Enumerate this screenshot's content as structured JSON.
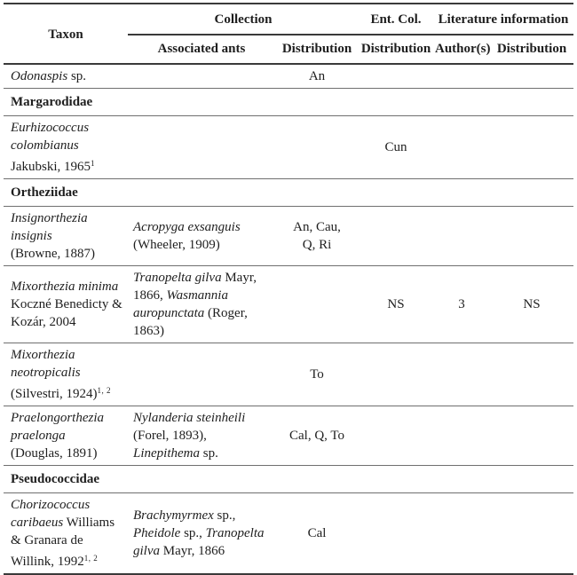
{
  "colors": {
    "background": "#ffffff",
    "text": "#1e1e1e",
    "heavy_rule": "#3a3a3a",
    "light_rule": "#6f6f6f"
  },
  "table": {
    "header": {
      "taxon": "Taxon",
      "collection": "Collection",
      "ent_col": "Ent. Col.",
      "literature": "Literature information",
      "associated_ants": "Associated ants",
      "dist_collection": "Distribution",
      "dist_ent": "Distribution",
      "authors": "Author(s)",
      "dist_literature": "Distribution"
    },
    "rows": [
      {
        "type": "species",
        "taxon": [
          {
            "t": "Odonaspis",
            "i": true
          },
          {
            "t": " sp."
          }
        ],
        "ants": [],
        "col_dist": [
          {
            "t": "An"
          }
        ],
        "ent_dist": [],
        "authors": [],
        "lit_dist": []
      },
      {
        "type": "family",
        "label": "Margarodidae"
      },
      {
        "type": "species",
        "taxon": [
          {
            "t": "Eurhizococcus",
            "i": true
          },
          {
            "br": true
          },
          {
            "t": "colombianus",
            "i": true
          },
          {
            "br": true
          },
          {
            "t": "Jakubski, 1965"
          },
          {
            "t": "1",
            "s": true
          }
        ],
        "ants": [],
        "col_dist": [],
        "ent_dist": [
          {
            "t": "Cun"
          }
        ],
        "authors": [],
        "lit_dist": []
      },
      {
        "type": "family",
        "label": "Ortheziidae"
      },
      {
        "type": "species",
        "taxon": [
          {
            "t": "Insignorthezia insignis",
            "i": true
          },
          {
            "br": true
          },
          {
            "t": "(Browne, 1887)"
          }
        ],
        "ants": [
          {
            "t": "Acropyga exsanguis",
            "i": true
          },
          {
            "br": true
          },
          {
            "t": "(Wheeler, 1909)"
          }
        ],
        "col_dist": [
          {
            "t": "An, Cau,"
          },
          {
            "br": true
          },
          {
            "t": "Q, Ri"
          }
        ],
        "ent_dist": [],
        "authors": [],
        "lit_dist": []
      },
      {
        "type": "species",
        "taxon": [
          {
            "t": "Mixorthezia minima",
            "i": true
          },
          {
            "br": true
          },
          {
            "t": "Koczné Benedicty &"
          },
          {
            "br": true
          },
          {
            "t": "Kozár, 2004"
          }
        ],
        "ants": [
          {
            "t": "Tranopelta gilva",
            "i": true
          },
          {
            "t": " Mayr,"
          },
          {
            "br": true
          },
          {
            "t": "1866, "
          },
          {
            "t": "Wasmannia",
            "i": true
          },
          {
            "br": true
          },
          {
            "t": "auropunctata",
            "i": true
          },
          {
            "t": " (Roger, 1863)"
          }
        ],
        "col_dist": [],
        "ent_dist": [
          {
            "t": "NS"
          }
        ],
        "authors": [
          {
            "t": "3"
          }
        ],
        "lit_dist": [
          {
            "t": "NS"
          }
        ]
      },
      {
        "type": "species",
        "taxon": [
          {
            "t": "Mixorthezia",
            "i": true
          },
          {
            "br": true
          },
          {
            "t": "neotropicalis",
            "i": true
          },
          {
            "br": true
          },
          {
            "t": "(Silvestri, 1924)"
          },
          {
            "t": "1, 2",
            "s": true
          }
        ],
        "ants": [],
        "col_dist": [
          {
            "t": "To"
          }
        ],
        "ent_dist": [],
        "authors": [],
        "lit_dist": []
      },
      {
        "type": "species",
        "taxon": [
          {
            "t": "Praelongorthezia",
            "i": true
          },
          {
            "br": true
          },
          {
            "t": "praelonga",
            "i": true
          },
          {
            "br": true
          },
          {
            "t": "(Douglas, 1891)"
          }
        ],
        "ants": [
          {
            "t": "Nylanderia steinheili",
            "i": true
          },
          {
            "br": true
          },
          {
            "t": "(Forel, 1893),"
          },
          {
            "br": true
          },
          {
            "t": "Linepithema",
            "i": true
          },
          {
            "t": " sp."
          }
        ],
        "col_dist": [
          {
            "t": "Cal, Q, To"
          }
        ],
        "ent_dist": [],
        "authors": [],
        "lit_dist": []
      },
      {
        "type": "family",
        "label": "Pseudococcidae"
      },
      {
        "type": "species",
        "taxon": [
          {
            "t": "Chorizococcus",
            "i": true
          },
          {
            "br": true
          },
          {
            "t": "caribaeus",
            "i": true
          },
          {
            "t": " Williams"
          },
          {
            "br": true
          },
          {
            "t": "& Granara de"
          },
          {
            "br": true
          },
          {
            "t": "Willink, 1992"
          },
          {
            "t": "1, 2",
            "s": true
          }
        ],
        "ants": [
          {
            "t": "Brachymyrmex",
            "i": true
          },
          {
            "t": " sp.,"
          },
          {
            "br": true
          },
          {
            "t": "Pheidole",
            "i": true
          },
          {
            "t": " sp., "
          },
          {
            "t": "Tranopelta",
            "i": true
          },
          {
            "br": true
          },
          {
            "t": "gilva",
            "i": true
          },
          {
            "t": " Mayr, 1866"
          }
        ],
        "col_dist": [
          {
            "t": "Cal"
          }
        ],
        "ent_dist": [],
        "authors": [],
        "lit_dist": []
      }
    ]
  }
}
